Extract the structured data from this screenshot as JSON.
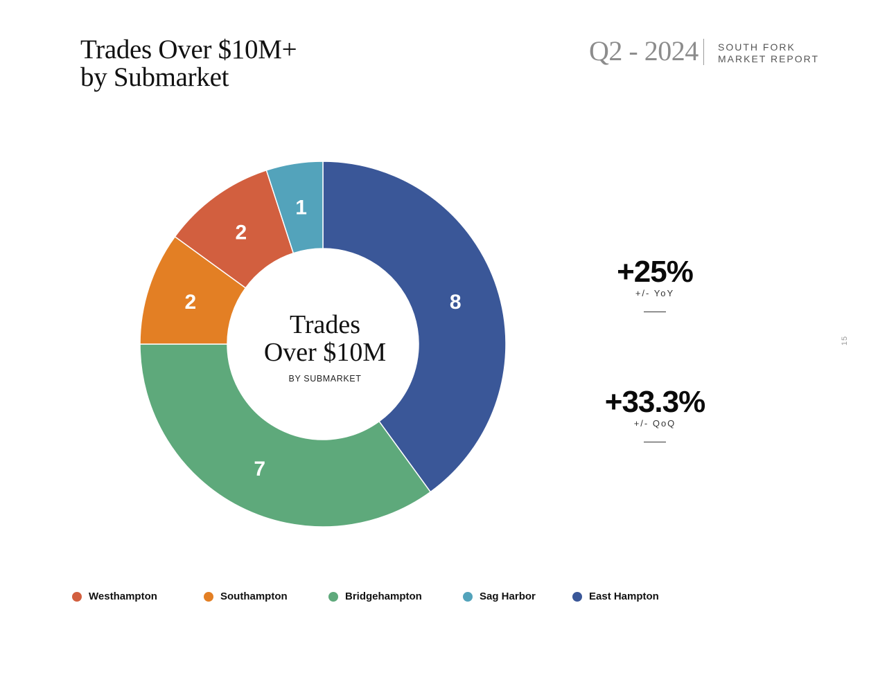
{
  "header": {
    "title_line1": "Trades Over $10M+",
    "title_line2": "by Submarket",
    "quarter": "Q2 - 2024",
    "report_line1": "SOUTH FORK",
    "report_line2": "MARKET REPORT"
  },
  "stats": [
    {
      "value": "+25%",
      "label": "+/- YoY"
    },
    {
      "value": "+33.3%",
      "label": "+/- QoQ"
    }
  ],
  "page_number": "15",
  "chart_data": {
    "type": "pie",
    "style": "donut",
    "center_title_line1": "Trades",
    "center_title_line2": "Over $10M",
    "center_subtitle": "BY SUBMARKET",
    "series": [
      {
        "name": "East Hampton",
        "value": 8,
        "color": "#3a5798"
      },
      {
        "name": "Bridgehampton",
        "value": 7,
        "color": "#5ea97b"
      },
      {
        "name": "Southampton",
        "value": 2,
        "color": "#e37f24"
      },
      {
        "name": "Westhampton",
        "value": 2,
        "color": "#d25f3f"
      },
      {
        "name": "Sag Harbor",
        "value": 1,
        "color": "#53a3bb"
      }
    ],
    "legend_placement": "bottom",
    "legend": [
      {
        "name": "Westhampton",
        "color": "#d25f3f"
      },
      {
        "name": "Southampton",
        "color": "#e37f24"
      },
      {
        "name": "Bridgehampton",
        "color": "#5ea97b"
      },
      {
        "name": "Sag Harbor",
        "color": "#53a3bb"
      },
      {
        "name": "East Hampton",
        "color": "#3a5798"
      }
    ]
  }
}
